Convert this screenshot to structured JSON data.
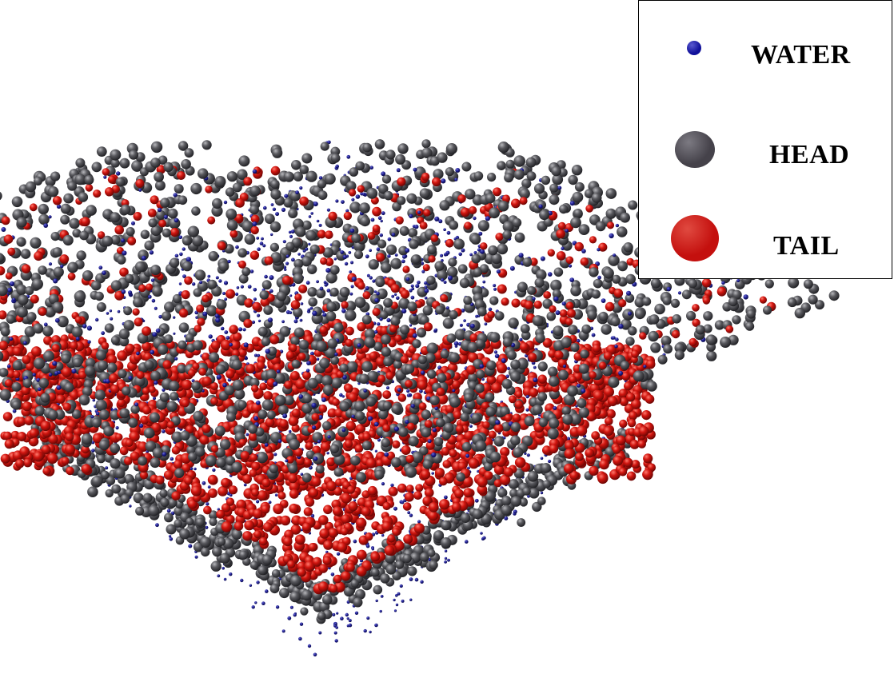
{
  "legend": {
    "items": [
      {
        "label": "WATER",
        "color": "#10109a"
      },
      {
        "label": "HEAD",
        "color": "#45424a"
      },
      {
        "label": "TAIL",
        "color": "#c4100e"
      }
    ]
  }
}
